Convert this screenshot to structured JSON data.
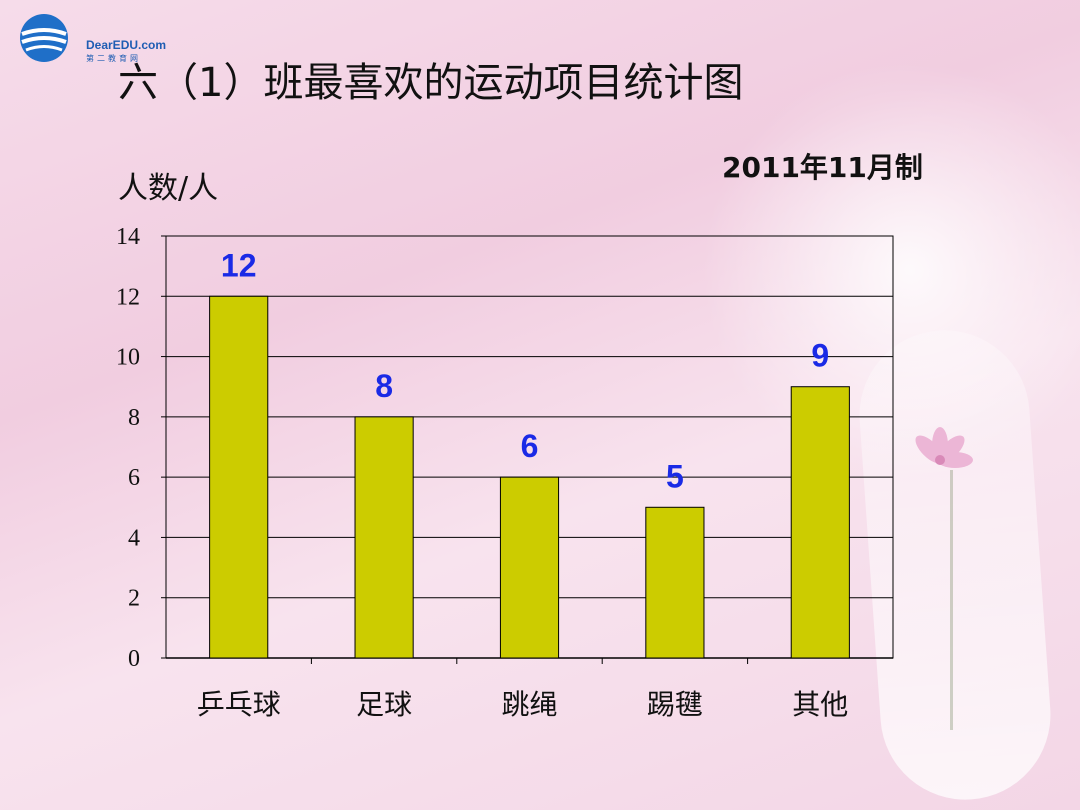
{
  "logo": {
    "name": "DearEDU.com",
    "sub": "第二教育网"
  },
  "chart_data": {
    "type": "bar",
    "title": "六（1）班最喜欢的运动项目统计图",
    "subtitle": "2011年11月制",
    "ylabel": "人数/人",
    "xlabel": "",
    "categories": [
      "乒乓球",
      "足球",
      "跳绳",
      "踢毽",
      "其他"
    ],
    "values": [
      12,
      8,
      6,
      5,
      9
    ],
    "ylim": [
      0,
      14
    ],
    "yticks": [
      0,
      2,
      4,
      6,
      8,
      10,
      12,
      14
    ],
    "grid": true,
    "legend": "none",
    "colors": {
      "bar": "#cccc00",
      "bar_stroke": "#000000",
      "data_label": "#1a2ae6",
      "grid": "#000000"
    }
  }
}
